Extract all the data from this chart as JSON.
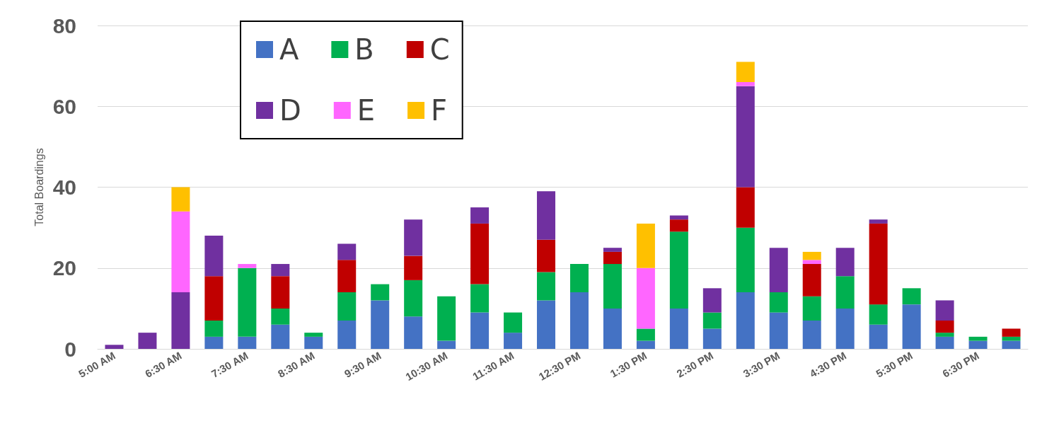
{
  "chart_data": {
    "type": "bar",
    "stacked": true,
    "ylabel": "Total Boardings",
    "categories": [
      "5:00 AM",
      null,
      "6:30 AM",
      null,
      "7:30 AM",
      null,
      "8:30 AM",
      null,
      "9:30 AM",
      null,
      "10:30 AM",
      null,
      "11:30 AM",
      null,
      "12:30 PM",
      null,
      "1:30 PM",
      null,
      "2:30 PM",
      null,
      "3:30 PM",
      null,
      "4:30 PM",
      null,
      "5:30 PM",
      null,
      "6:30 PM",
      null
    ],
    "series": [
      {
        "name": "A",
        "color": "#4472c4",
        "values": [
          0,
          0,
          0,
          3,
          3,
          6,
          3,
          7,
          12,
          8,
          2,
          9,
          4,
          12,
          14,
          10,
          2,
          10,
          5,
          14,
          9,
          7,
          10,
          6,
          11,
          3,
          2,
          2
        ]
      },
      {
        "name": "B",
        "color": "#00b050",
        "values": [
          0,
          0,
          0,
          4,
          17,
          4,
          1,
          7,
          4,
          9,
          11,
          7,
          5,
          7,
          7,
          11,
          3,
          19,
          4,
          16,
          5,
          6,
          8,
          5,
          4,
          1,
          1,
          1
        ]
      },
      {
        "name": "C",
        "color": "#c00000",
        "values": [
          0,
          0,
          0,
          11,
          0,
          8,
          0,
          8,
          0,
          6,
          0,
          15,
          0,
          8,
          0,
          3,
          0,
          3,
          0,
          10,
          0,
          8,
          0,
          20,
          0,
          3,
          0,
          2
        ]
      },
      {
        "name": "D",
        "color": "#7030a0",
        "values": [
          1,
          4,
          14,
          10,
          0,
          3,
          0,
          4,
          0,
          9,
          0,
          4,
          0,
          12,
          0,
          1,
          0,
          1,
          6,
          25,
          11,
          0,
          7,
          1,
          0,
          5,
          0,
          0
        ]
      },
      {
        "name": "E",
        "color": "#ff66ff",
        "values": [
          0,
          0,
          20,
          0,
          1,
          0,
          0,
          0,
          0,
          0,
          0,
          0,
          0,
          0,
          0,
          0,
          15,
          0,
          0,
          1,
          0,
          1,
          0,
          0,
          0,
          0,
          0,
          0
        ]
      },
      {
        "name": "F",
        "color": "#ffc000",
        "values": [
          0,
          0,
          6,
          0,
          0,
          0,
          0,
          0,
          0,
          0,
          0,
          0,
          0,
          0,
          0,
          0,
          11,
          0,
          0,
          5,
          0,
          2,
          0,
          0,
          0,
          0,
          0,
          0
        ]
      }
    ],
    "ylim": [
      0,
      80
    ],
    "yticks": [
      0,
      20,
      40,
      60,
      80
    ],
    "grid": "y",
    "legend": "top left"
  }
}
